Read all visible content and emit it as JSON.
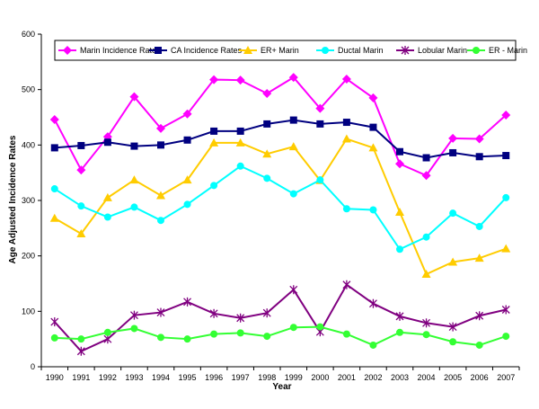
{
  "chart_data": {
    "type": "line",
    "title": "",
    "xlabel": "Year",
    "ylabel": "Age Adjusted Incidence Rates",
    "ylim": [
      0,
      600
    ],
    "y_ticks": [
      0,
      100,
      200,
      300,
      400,
      500,
      600
    ],
    "categories": [
      "1990",
      "1991",
      "1992",
      "1993",
      "1994",
      "1995",
      "1996",
      "1997",
      "1998",
      "1999",
      "2000",
      "2001",
      "2002",
      "2003",
      "2004",
      "2005",
      "2006",
      "2007"
    ],
    "grid": false,
    "legend_position": "top",
    "series": [
      {
        "name": "Marin Incidence Rates",
        "color": "#ff00ff",
        "marker": "diamond",
        "values": [
          446,
          355,
          415,
          487,
          430,
          456,
          518,
          517,
          493,
          522,
          466,
          519,
          485,
          366,
          345,
          412,
          411,
          454
        ]
      },
      {
        "name": "CA Incidence Rates",
        "color": "#000080",
        "marker": "square",
        "values": [
          395,
          399,
          405,
          398,
          400,
          409,
          425,
          425,
          438,
          445,
          438,
          441,
          432,
          388,
          377,
          386,
          379,
          381
        ]
      },
      {
        "name": "ER+ Marin",
        "color": "#ffcc00",
        "marker": "triangle",
        "values": [
          268,
          240,
          305,
          337,
          309,
          337,
          404,
          404,
          384,
          397,
          336,
          411,
          395,
          279,
          167,
          189,
          196,
          213
        ]
      },
      {
        "name": "Ductal Marin",
        "color": "#00ffff",
        "marker": "circle",
        "values": [
          321,
          290,
          270,
          288,
          264,
          293,
          327,
          362,
          340,
          312,
          337,
          285,
          283,
          212,
          234,
          277,
          253,
          305
        ]
      },
      {
        "name": "Lobular Marin",
        "color": "#800080",
        "marker": "star",
        "values": [
          81,
          28,
          50,
          93,
          98,
          117,
          96,
          88,
          97,
          139,
          63,
          148,
          114,
          91,
          79,
          72,
          92,
          103
        ]
      },
      {
        "name": "ER - Marin",
        "color": "#33ff33",
        "marker": "circle",
        "values": [
          52,
          50,
          62,
          69,
          53,
          50,
          59,
          61,
          55,
          71,
          72,
          59,
          39,
          62,
          58,
          45,
          39,
          55
        ]
      }
    ]
  }
}
